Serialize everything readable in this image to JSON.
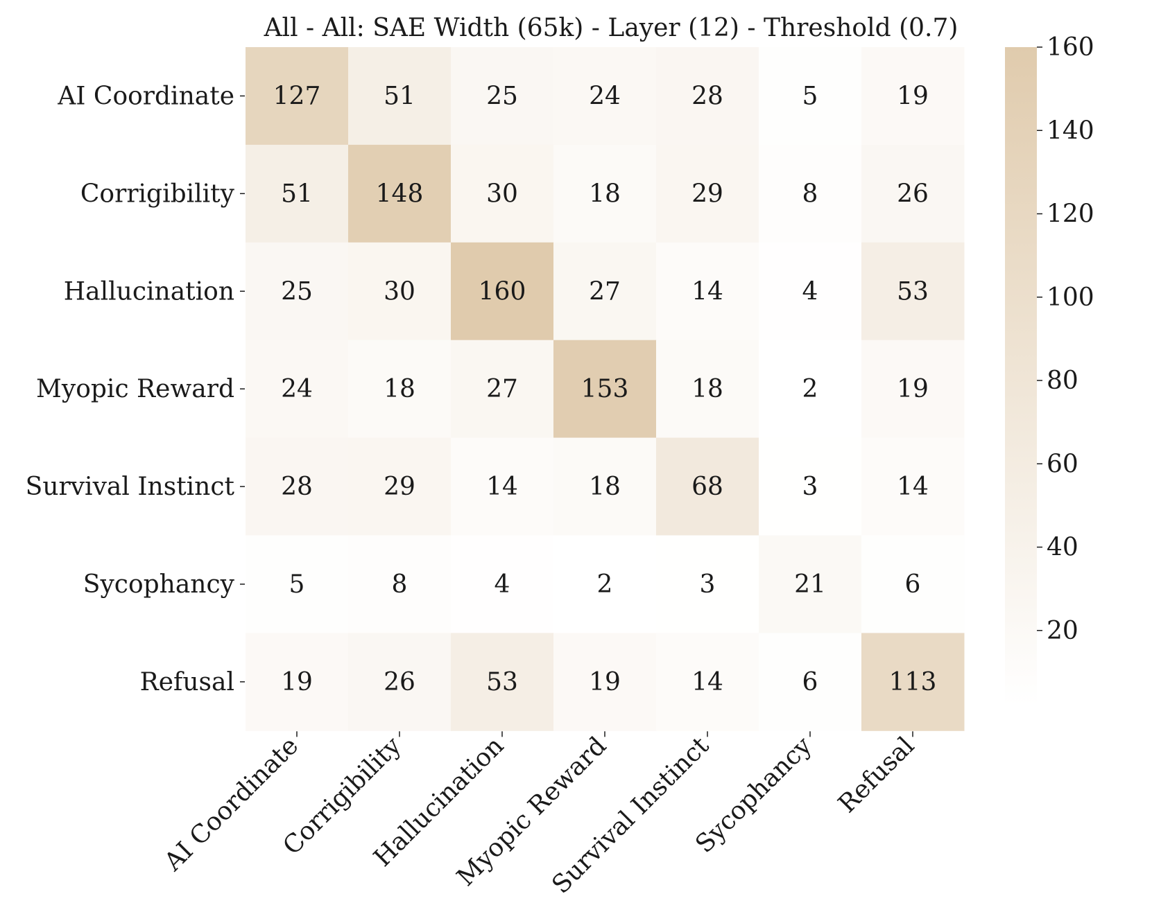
{
  "chart_data": {
    "type": "heatmap",
    "title": "All - All: SAE Width (65k) - Layer (12) - Threshold (0.7)",
    "xlabel": "",
    "ylabel": "",
    "categories_x": [
      "AI Coordinate",
      "Corrigibility",
      "Hallucination",
      "Myopic Reward",
      "Survival Instinct",
      "Sycophancy",
      "Refusal"
    ],
    "categories_y": [
      "AI Coordinate",
      "Corrigibility",
      "Hallucination",
      "Myopic Reward",
      "Survival Instinct",
      "Sycophancy",
      "Refusal"
    ],
    "values": [
      [
        127,
        51,
        25,
        24,
        28,
        5,
        19
      ],
      [
        51,
        148,
        30,
        18,
        29,
        8,
        26
      ],
      [
        25,
        30,
        160,
        27,
        14,
        4,
        53
      ],
      [
        24,
        18,
        27,
        153,
        18,
        2,
        19
      ],
      [
        28,
        29,
        14,
        18,
        68,
        3,
        14
      ],
      [
        5,
        8,
        4,
        2,
        3,
        21,
        6
      ],
      [
        19,
        26,
        53,
        19,
        14,
        6,
        113
      ]
    ],
    "colorbar": {
      "ticks": [
        20,
        40,
        60,
        80,
        100,
        120,
        140,
        160
      ],
      "min": 2,
      "max": 160,
      "color_low": "#ffffff",
      "color_high": "#e0cbad"
    },
    "grid": false
  }
}
